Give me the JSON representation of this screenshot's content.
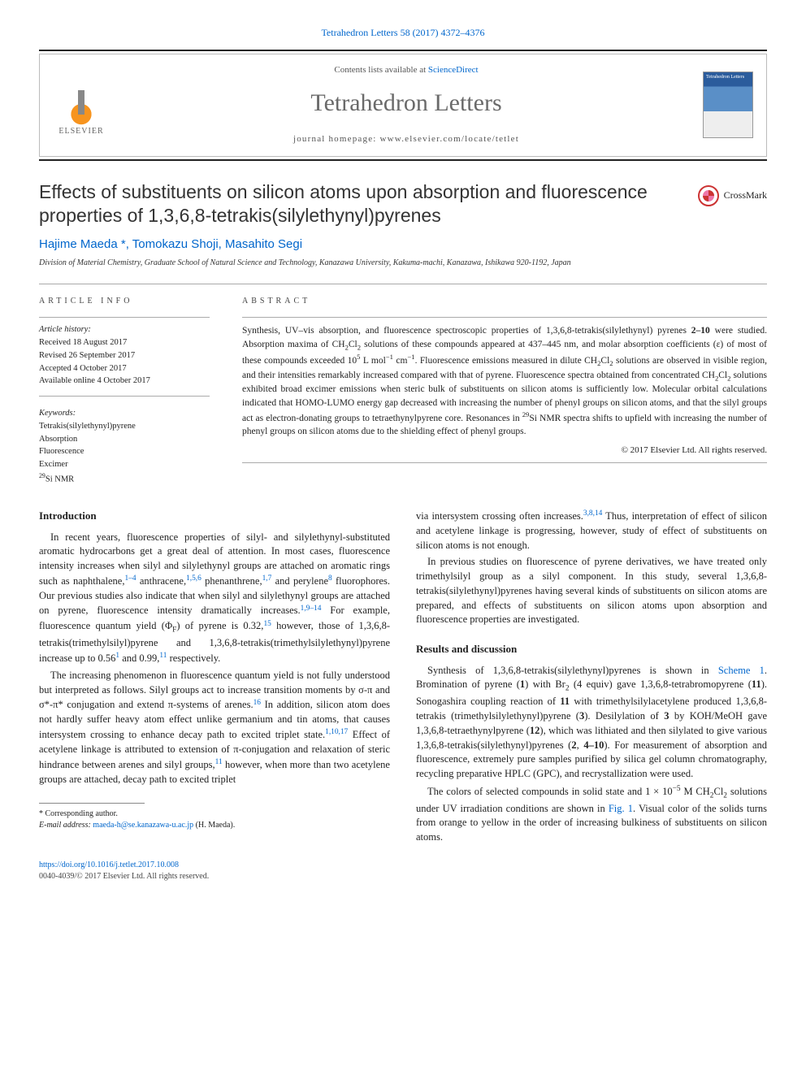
{
  "topReference": {
    "journal": "Tetrahedron Letters",
    "citation": "58 (2017) 4372–4376"
  },
  "masthead": {
    "contentsLine": "Contents lists available at",
    "contentsLink": "ScienceDirect",
    "journalName": "Tetrahedron Letters",
    "homepageLabel": "journal homepage:",
    "homepageUrl": "www.elsevier.com/locate/tetlet",
    "publisherLogoText": "ELSEVIER",
    "coverTitle": "Tetrahedron Letters"
  },
  "title": "Effects of substituents on silicon atoms upon absorption and fluorescence properties of 1,3,6,8-tetrakis(silylethynyl)pyrenes",
  "crossmarkLabel": "CrossMark",
  "authors": "Hajime Maeda *, Tomokazu Shoji, Masahito Segi",
  "affiliation": "Division of Material Chemistry, Graduate School of Natural Science and Technology, Kanazawa University, Kakuma-machi, Kanazawa, Ishikawa 920-1192, Japan",
  "articleInfo": {
    "label": "ARTICLE INFO",
    "historyLabel": "Article history:",
    "history": {
      "received": "Received 18 August 2017",
      "revised": "Revised 26 September 2017",
      "accepted": "Accepted 4 October 2017",
      "online": "Available online 4 October 2017"
    },
    "keywordsLabel": "Keywords:",
    "keywords": [
      "Tetrakis(silylethynyl)pyrene",
      "Absorption",
      "Fluorescence",
      "Excimer",
      "29Si NMR"
    ]
  },
  "abstract": {
    "label": "ABSTRACT",
    "text": "Synthesis, UV–vis absorption, and fluorescence spectroscopic properties of 1,3,6,8-tetrakis(silylethynyl)pyrenes 2–10 were studied. Absorption maxima of CH2Cl2 solutions of these compounds appeared at 437–445 nm, and molar absorption coefficients (ε) of most of these compounds exceeded 105 L mol−1 cm−1. Fluorescence emissions measured in dilute CH2Cl2 solutions are observed in visible region, and their intensities remarkably increased compared with that of pyrene. Fluorescence spectra obtained from concentrated CH2Cl2 solutions exhibited broad excimer emissions when steric bulk of substituents on silicon atoms is sufficiently low. Molecular orbital calculations indicated that HOMO-LUMO energy gap decreased with increasing the number of phenyl groups on silicon atoms, and that the silyl groups act as electron-donating groups to tetraethynylpyrene core. Resonances in 29Si NMR spectra shifts to upfield with increasing the number of phenyl groups on silicon atoms due to the shielding effect of phenyl groups.",
    "copyright": "© 2017 Elsevier Ltd. All rights reserved."
  },
  "body": {
    "introHeading": "Introduction",
    "introP1": "In recent years, fluorescence properties of silyl- and silylethynyl-substituted aromatic hydrocarbons get a great deal of attention. In most cases, fluorescence intensity increases when silyl and silylethynyl groups are attached on aromatic rings such as naphthalene,1–4 anthracene,1,5,6 phenanthrene,1,7 and perylene8 fluorophores. Our previous studies also indicate that when silyl and silylethynyl groups are attached on pyrene, fluorescence intensity dramatically increases.1,9–14 For example, fluorescence quantum yield (ΦF) of pyrene is 0.32,15 however, those of 1,3,6,8-tetrakis(trimethylsilyl)pyrene and 1,3,6,8-tetrakis(trimethylsilylethynyl)pyrene increase up to 0.561 and 0.99,11 respectively.",
    "introP2": "The increasing phenomenon in fluorescence quantum yield is not fully understood but interpreted as follows. Silyl groups act to increase transition moments by σ-π and σ*-π* conjugation and extend π-systems of arenes.16 In addition, silicon atom does not hardly suffer heavy atom effect unlike germanium and tin atoms, that causes intersystem crossing to enhance decay path to excited triplet state.1,10,17 Effect of acetylene linkage is attributed to extension of π-conjugation and relaxation of steric hindrance between arenes and silyl groups,11 however, when more than two acetylene groups are attached, decay path to excited triplet",
    "introP3": "via intersystem crossing often increases.3,8,14 Thus, interpretation of effect of silicon and acetylene linkage is progressing, however, study of effect of substituents on silicon atoms is not enough.",
    "introP4": "In previous studies on fluorescence of pyrene derivatives, we have treated only trimethylsilyl group as a silyl component. In this study, several 1,3,6,8-tetrakis(silylethynyl)pyrenes having several kinds of substituents on silicon atoms are prepared, and effects of substituents on silicon atoms upon absorption and fluorescence properties are investigated.",
    "resultsHeading": "Results and discussion",
    "resultsP1": "Synthesis of 1,3,6,8-tetrakis(silylethynyl)pyrenes is shown in Scheme 1. Bromination of pyrene (1) with Br2 (4 equiv) gave 1,3,6,8-tetrabromopyrene (11). Sonogashira coupling reaction of 11 with trimethylsilylacetylene produced 1,3,6,8-tetrakis(trimethylsilylethynyl)pyrene (3). Desilylation of 3 by KOH/MeOH gave 1,3,6,8-tetraethynylpyrene (12), which was lithiated and then silylated to give various 1,3,6,8-tetrakis(silylethynyl)pyrenes (2, 4–10). For measurement of absorption and fluorescence, extremely pure samples purified by silica gel column chromatography, recycling preparative HPLC (GPC), and recrystallization were used.",
    "resultsP2": "The colors of selected compounds in solid state and 1 × 10−5 M CH2Cl2 solutions under UV irradiation conditions are shown in Fig. 1. Visual color of the solids turns from orange to yellow in the order of increasing bulkiness of substituents on silicon atoms."
  },
  "footnote": {
    "corrLabel": "* Corresponding author.",
    "emailLabel": "E-mail address:",
    "email": "maeda-h@se.kanazawa-u.ac.jp",
    "emailAuthor": "(H. Maeda)."
  },
  "footer": {
    "doi": "https://doi.org/10.1016/j.tetlet.2017.10.008",
    "issnLine": "0040-4039/© 2017 Elsevier Ltd. All rights reserved."
  }
}
